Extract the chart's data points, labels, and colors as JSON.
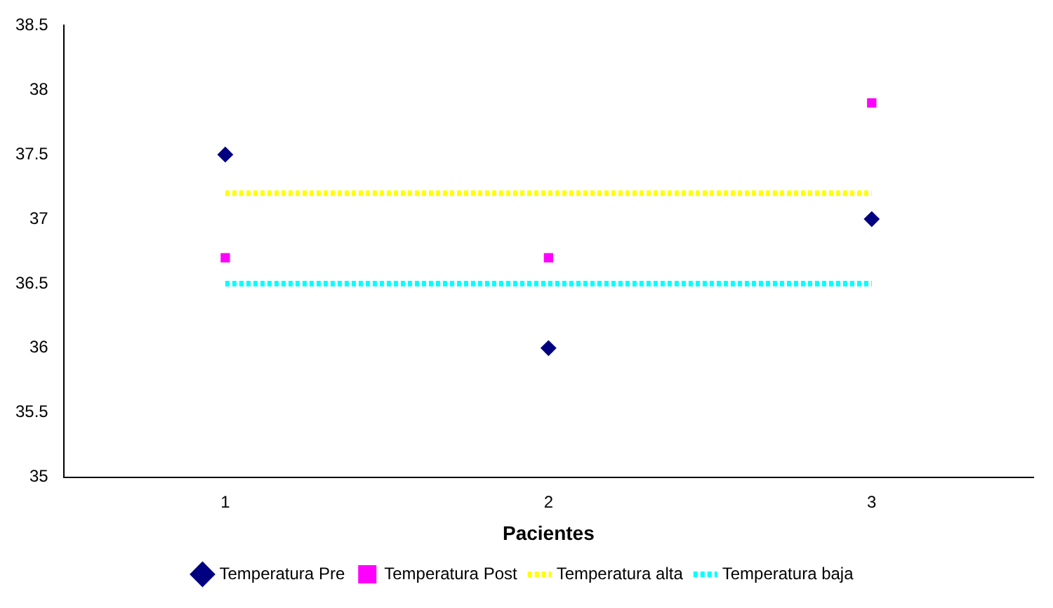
{
  "chart_data": {
    "type": "scatter",
    "xlabel": "Pacientes",
    "categories": [
      "1",
      "2",
      "3"
    ],
    "ylim": [
      35,
      38.5
    ],
    "yticks": [
      35,
      35.5,
      36,
      36.5,
      37,
      37.5,
      38,
      38.5
    ],
    "grid": false,
    "legend": "bottom",
    "series": [
      {
        "name": "Temperatura Pre",
        "type": "scatter",
        "color": "#000080",
        "marker": "diamond",
        "values": [
          37.5,
          36,
          37
        ]
      },
      {
        "name": "Temperatura Post",
        "type": "scatter",
        "color": "#ff00ff",
        "marker": "square",
        "values": [
          36.7,
          36.7,
          37.9
        ]
      },
      {
        "name": "Temperatura alta",
        "type": "line",
        "color": "#ffff00",
        "marker": "none",
        "line_style": "dotted",
        "values": [
          37.2,
          37.2,
          37.2
        ]
      },
      {
        "name": "Temperatura baja",
        "type": "line",
        "color": "#00ffff",
        "marker": "none",
        "line_style": "dotted",
        "values": [
          36.5,
          36.5,
          36.5
        ]
      }
    ]
  }
}
